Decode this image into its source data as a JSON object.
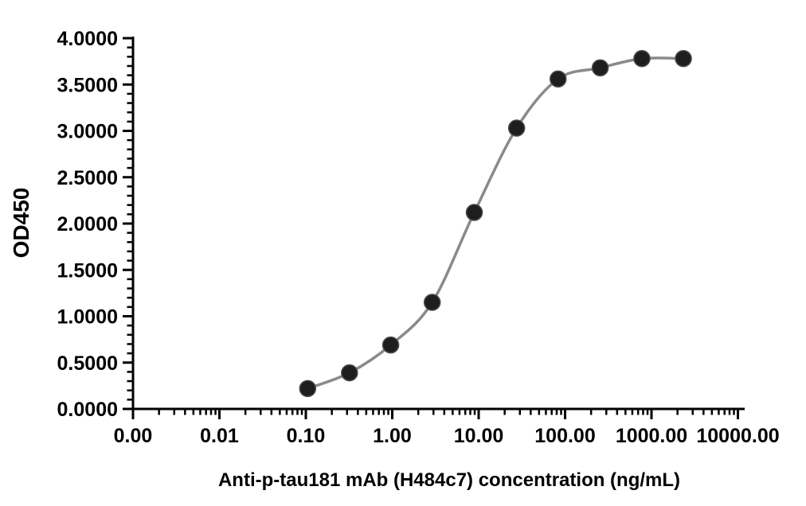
{
  "chart_data": {
    "type": "line",
    "title": "",
    "xlabel": "Anti-p-tau181 mAb (H484c7) concentration (ng/mL)",
    "ylabel": "OD450",
    "x_scale": "log10",
    "xlim": [
      0.001,
      10000
    ],
    "ylim": [
      0,
      4
    ],
    "grid": false,
    "legend": "none",
    "x_ticks": {
      "values": [
        0.001,
        0.01,
        0.1,
        1,
        10,
        100,
        1000,
        10000
      ],
      "labels": [
        "0.00",
        "0.01",
        "0.10",
        "1.00",
        "10.00",
        "100.00",
        "1000.00",
        "10000.00"
      ]
    },
    "y_ticks": {
      "values": [
        0,
        0.5,
        1,
        1.5,
        2,
        2.5,
        3,
        3.5,
        4
      ],
      "labels": [
        "0.0000",
        "0.5000",
        "1.0000",
        "1.5000",
        "2.0000",
        "2.5000",
        "3.0000",
        "3.5000",
        "4.0000"
      ]
    },
    "y_minor_step": 0.1,
    "x_minor_ticks": "log-decade-2-to-9",
    "series": [
      {
        "name": "Anti-p-tau181 mAb (H484c7)",
        "marker": "circle",
        "marker_color": "#1e1e1e",
        "marker_edge_color": "#4a4a4a",
        "line_color": "#8a8a8a",
        "x": [
          0.105,
          0.32,
          0.96,
          2.9,
          8.9,
          27.5,
          83,
          255,
          775,
          2340
        ],
        "y": [
          0.22,
          0.39,
          0.69,
          1.15,
          2.12,
          3.03,
          3.56,
          3.68,
          3.78,
          3.78
        ]
      }
    ]
  },
  "colors": {
    "background": "#ffffff",
    "axis": "#000000",
    "text": "#000000"
  }
}
